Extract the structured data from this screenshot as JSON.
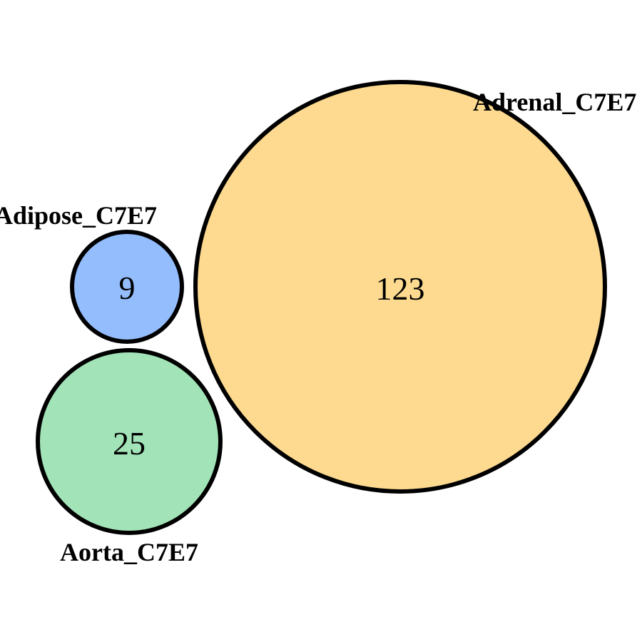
{
  "diagram": {
    "type": "venn",
    "stroke_color": "#000000",
    "sets": [
      {
        "id": "adipose",
        "label": "Adipose_C7E7",
        "count": "9",
        "color": "#94BDFD"
      },
      {
        "id": "aorta",
        "label": "Aorta_C7E7",
        "count": "25",
        "color": "#A2E3B8"
      },
      {
        "id": "adrenal",
        "label": "Adrenal_C7E7",
        "count": "123",
        "color": "#FDDA8F"
      }
    ]
  }
}
